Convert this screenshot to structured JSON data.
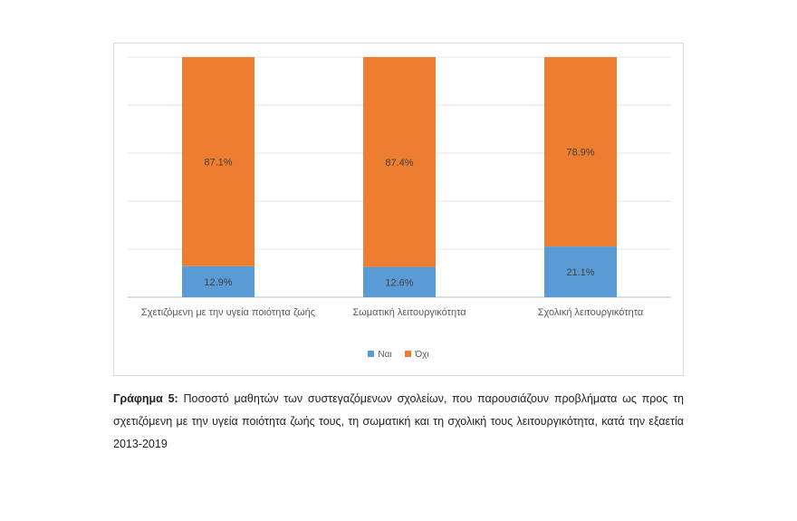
{
  "chart_data": {
    "type": "bar",
    "stacked": true,
    "normalized": "percent",
    "categories": [
      "Σχετιζόμενη με την υγεία ποιότητα ζωής",
      "Σωματική λειτουργικότητα",
      "Σχολική λειτουργικότητα"
    ],
    "series": [
      {
        "name": "Ναι",
        "values": [
          12.9,
          12.6,
          21.1
        ],
        "labels": [
          "12.9%",
          "12.6%",
          "21.1%"
        ],
        "color": "#5b9bd5"
      },
      {
        "name": "Όχι",
        "values": [
          87.1,
          87.4,
          78.9
        ],
        "labels": [
          "87.1%",
          "87.4%",
          "78.9%"
        ],
        "color": "#ed7d31"
      }
    ],
    "ylim": [
      0,
      100
    ],
    "grid": true,
    "legend": "bottom"
  },
  "caption": {
    "label": "Γράφημα 5:",
    "text": "Ποσοστό μαθητών των συστεγαζόμενων σχολείων, που παρουσιάζουν προβλήματα ως προς τη σχετιζόμενη με την υγεία ποιότητα ζωής τους, τη σωματική και τη σχολική τους λειτουργικότητα, κατά την εξαετία 2013-2019"
  }
}
